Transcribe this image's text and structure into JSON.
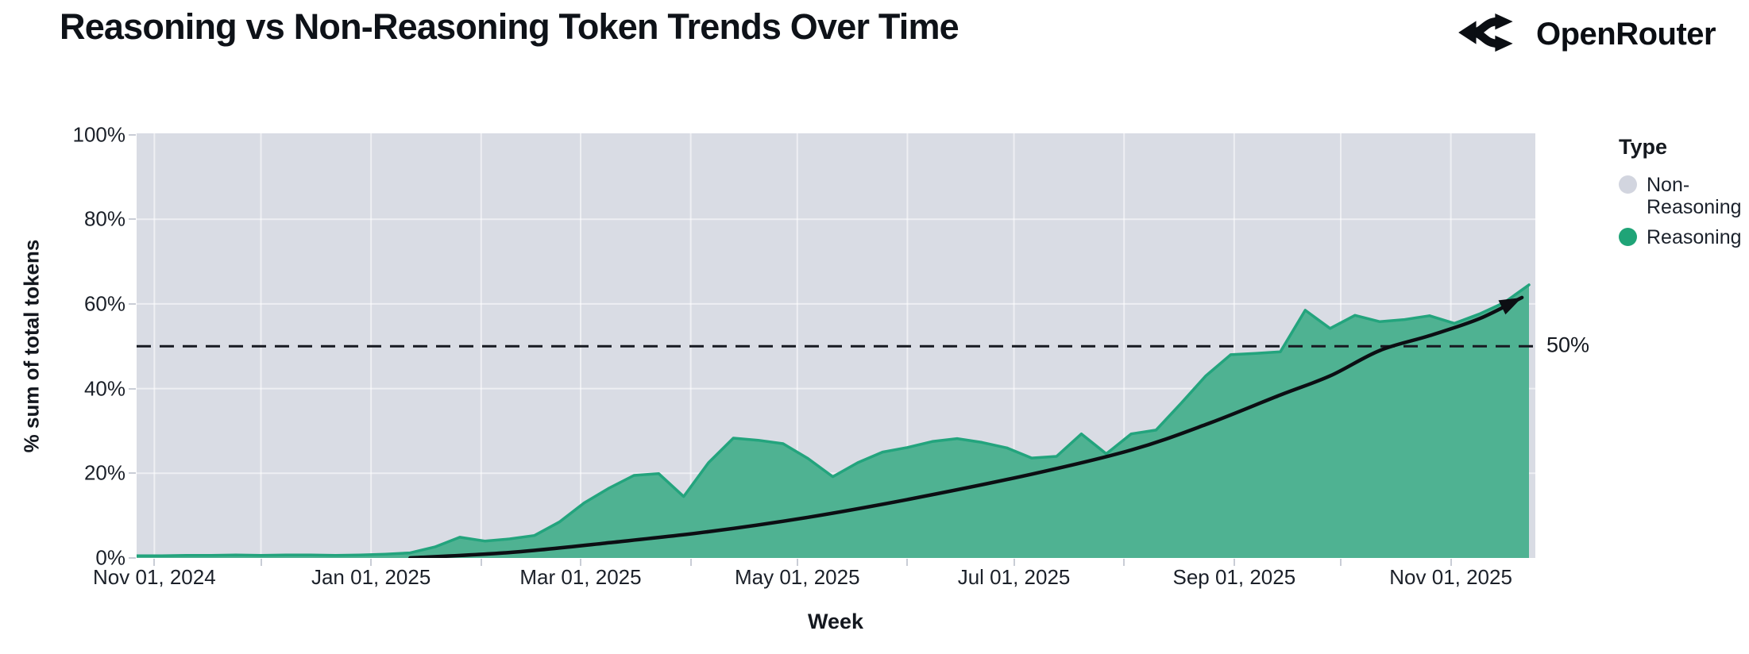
{
  "header": {
    "title": "Reasoning vs Non-Reasoning Token Trends Over Time",
    "brand": "OpenRouter"
  },
  "legend": {
    "title": "Type",
    "items": [
      {
        "label": "Non-Reasoning",
        "color": "#d2d5df"
      },
      {
        "label": "Reasoning",
        "color": "#1fa477"
      }
    ]
  },
  "annotations": {
    "fifty_percent_label": "50%"
  },
  "chart_data": {
    "type": "area",
    "title": "Reasoning vs Non-Reasoning Token Trends Over Time",
    "xlabel": "Week",
    "ylabel": "% sum of total tokens",
    "ylim": [
      0,
      100
    ],
    "grid": true,
    "legend_position": "right",
    "background_color": "#d9dce4",
    "x_ticks": [
      {
        "label": "Nov 01, 2024",
        "date": "2024-11-01"
      },
      {
        "label": "Jan 01, 2025",
        "date": "2025-01-01"
      },
      {
        "label": "Mar 01, 2025",
        "date": "2025-03-01"
      },
      {
        "label": "May 01, 2025",
        "date": "2025-05-01"
      },
      {
        "label": "Jul 01, 2025",
        "date": "2025-07-01"
      },
      {
        "label": "Sep 01, 2025",
        "date": "2025-09-01"
      },
      {
        "label": "Nov 01, 2025",
        "date": "2025-11-01"
      }
    ],
    "y_ticks": [
      {
        "label": "0%",
        "value": 0
      },
      {
        "label": "20%",
        "value": 20
      },
      {
        "label": "40%",
        "value": 40
      },
      {
        "label": "60%",
        "value": 60
      },
      {
        "label": "80%",
        "value": 80
      },
      {
        "label": "100%",
        "value": 100
      }
    ],
    "x_domain": [
      "2024-10-27",
      "2025-11-23"
    ],
    "series": [
      {
        "name": "Reasoning",
        "fill_color": "#4fb292",
        "stroke_color": "#23a47d",
        "start_week": "2024-10-27",
        "week_interval_days": 7,
        "values_pct": [
          0.5,
          0.5,
          0.6,
          0.6,
          0.7,
          0.6,
          0.7,
          0.7,
          0.6,
          0.7,
          0.9,
          1.2,
          2.6,
          4.9,
          4.0,
          4.5,
          5.3,
          8.5,
          13.0,
          16.5,
          19.5,
          19.9,
          14.5,
          22.5,
          28.3,
          27.8,
          27.0,
          23.5,
          19.2,
          22.5,
          25.0,
          26.1,
          27.5,
          28.2,
          27.3,
          26.0,
          23.6,
          24.0,
          29.3,
          24.6,
          29.3,
          30.2,
          36.5,
          43.0,
          48.0,
          48.3,
          48.7,
          58.5,
          54.2,
          57.3,
          55.8,
          56.3,
          57.2,
          55.4,
          57.6,
          60.3,
          64.5
        ]
      },
      {
        "name": "Non-Reasoning",
        "fill_color": "#d9dce4",
        "note": "remainder of stacked 100% above Reasoning area"
      }
    ],
    "reference_line": {
      "value": 50,
      "label": "50%",
      "style": "dashed",
      "color": "#171a21"
    },
    "trend_arrow": {
      "color": "#0c0e13",
      "points": [
        [
          "2025-01-12",
          0
        ],
        [
          "2025-02-09",
          1.3
        ],
        [
          "2025-03-09",
          3.6
        ],
        [
          "2025-04-06",
          6.2
        ],
        [
          "2025-05-04",
          9.6
        ],
        [
          "2025-06-01",
          13.8
        ],
        [
          "2025-07-06",
          19.8
        ],
        [
          "2025-08-03",
          25.5
        ],
        [
          "2025-08-24",
          31.5
        ],
        [
          "2025-09-14",
          38.5
        ],
        [
          "2025-09-28",
          43.0
        ],
        [
          "2025-10-12",
          49.0
        ],
        [
          "2025-10-26",
          52.5
        ],
        [
          "2025-11-09",
          56.5
        ],
        [
          "2025-11-21",
          61.5
        ]
      ]
    }
  }
}
